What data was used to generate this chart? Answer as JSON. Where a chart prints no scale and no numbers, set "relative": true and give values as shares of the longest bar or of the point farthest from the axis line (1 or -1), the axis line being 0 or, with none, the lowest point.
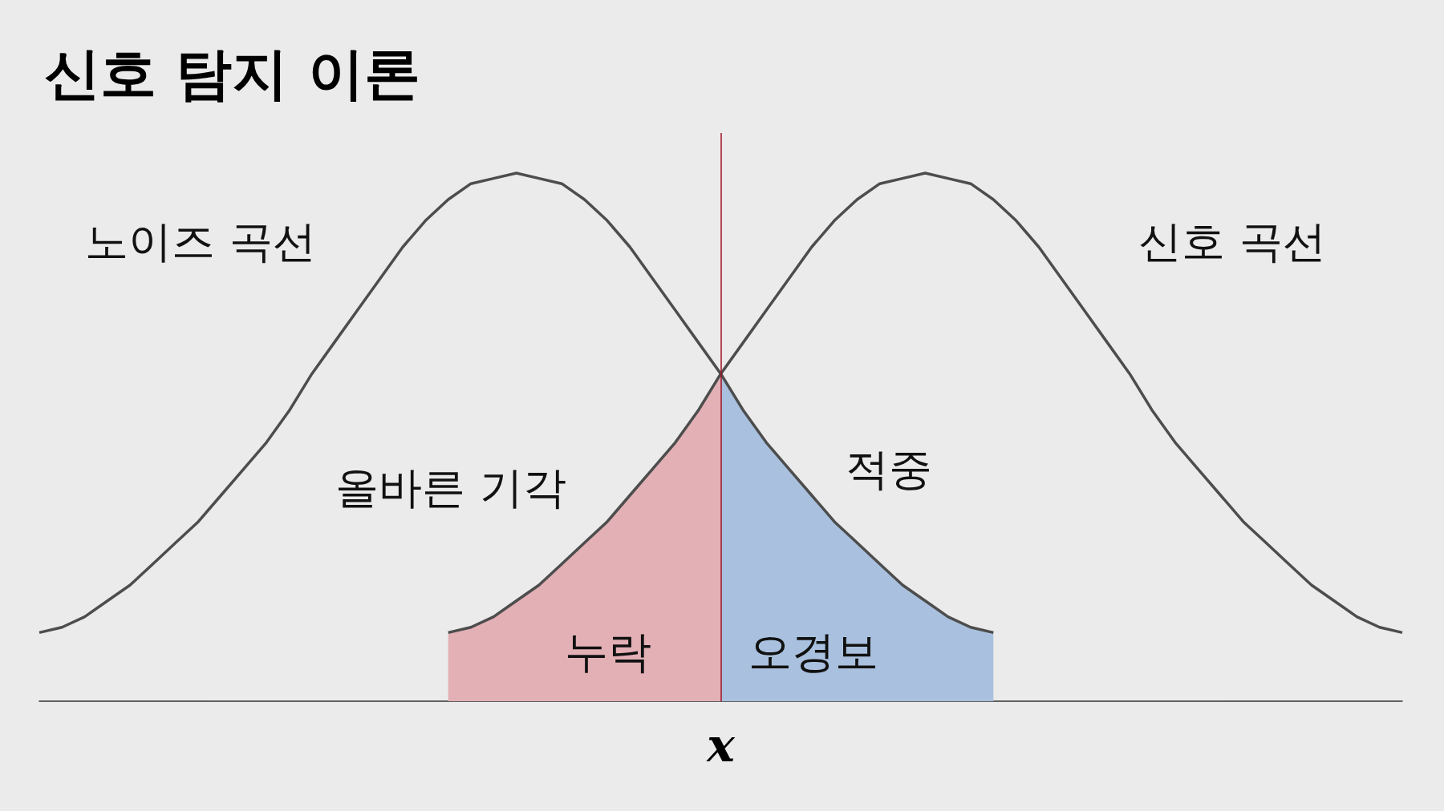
{
  "chart_data": {
    "type": "line",
    "title": "신호 탐지 이론",
    "relative": true,
    "marker": "none",
    "grid": false,
    "legend": false,
    "categories": [
      null,
      null,
      null,
      null,
      null,
      null,
      null,
      null,
      null,
      null,
      null,
      null,
      null,
      null,
      null,
      null,
      null,
      null,
      null,
      null,
      null,
      null,
      null,
      null,
      null,
      null,
      null,
      null,
      null,
      null,
      null,
      null,
      null,
      null,
      null,
      null,
      null,
      null,
      null,
      null,
      null,
      null,
      null,
      null,
      null,
      null,
      null,
      null,
      null,
      null,
      null,
      null,
      null,
      null,
      null,
      null,
      null,
      null,
      null,
      null,
      null
    ],
    "series": [
      {
        "name": "누락",
        "type": "area",
        "color": "#e2b0b5",
        "values": [
          null,
          null,
          null,
          null,
          null,
          null,
          null,
          null,
          null,
          null,
          null,
          null,
          null,
          null,
          null,
          null,
          null,
          null,
          0.13,
          0.14,
          0.16,
          0.19,
          0.22,
          0.26,
          0.3,
          0.34,
          0.39,
          0.44,
          0.49,
          0.55,
          0.62,
          null,
          null,
          null,
          null,
          null,
          null,
          null,
          null,
          null,
          null,
          null,
          null,
          null,
          null,
          null,
          null,
          null,
          null,
          null,
          null,
          null,
          null,
          null,
          null,
          null,
          null,
          null,
          null,
          null,
          null
        ]
      },
      {
        "name": "오경보",
        "type": "area",
        "color": "#a9c1de",
        "values": [
          null,
          null,
          null,
          null,
          null,
          null,
          null,
          null,
          null,
          null,
          null,
          null,
          null,
          null,
          null,
          null,
          null,
          null,
          null,
          null,
          null,
          null,
          null,
          null,
          null,
          null,
          null,
          null,
          null,
          null,
          0.62,
          0.55,
          0.49,
          0.44,
          0.39,
          0.34,
          0.3,
          0.26,
          0.22,
          0.19,
          0.16,
          0.14,
          0.13,
          null,
          null,
          null,
          null,
          null,
          null,
          null,
          null,
          null,
          null,
          null,
          null,
          null,
          null,
          null,
          null,
          null,
          null
        ]
      },
      {
        "name": "노이즈 곡선",
        "type": "line",
        "color": "#4d4d4d",
        "values": [
          0.13,
          0.14,
          0.16,
          0.19,
          0.22,
          0.26,
          0.3,
          0.34,
          0.39,
          0.44,
          0.49,
          0.55,
          0.62,
          0.68,
          0.74,
          0.8,
          0.86,
          0.91,
          0.95,
          0.98,
          0.99,
          1,
          0.99,
          0.98,
          0.95,
          0.91,
          0.86,
          0.8,
          0.74,
          0.68,
          0.62,
          0.55,
          0.49,
          0.44,
          0.39,
          0.34,
          0.3,
          0.26,
          0.22,
          0.19,
          0.16,
          0.14,
          0.13,
          null,
          null,
          null,
          null,
          null,
          null,
          null,
          null,
          null,
          null,
          null,
          null,
          null,
          null,
          null,
          null,
          null,
          null
        ]
      },
      {
        "name": "신호 곡선",
        "type": "line",
        "color": "#4d4d4d",
        "values": [
          null,
          null,
          null,
          null,
          null,
          null,
          null,
          null,
          null,
          null,
          null,
          null,
          null,
          null,
          null,
          null,
          null,
          null,
          0.13,
          0.14,
          0.16,
          0.19,
          0.22,
          0.26,
          0.3,
          0.34,
          0.39,
          0.44,
          0.49,
          0.55,
          0.62,
          0.68,
          0.74,
          0.8,
          0.86,
          0.91,
          0.95,
          0.98,
          0.99,
          1,
          0.99,
          0.98,
          0.95,
          0.91,
          0.86,
          0.8,
          0.74,
          0.68,
          0.62,
          0.55,
          0.49,
          0.44,
          0.39,
          0.34,
          0.3,
          0.26,
          0.22,
          0.19,
          0.16,
          0.14,
          0.13
        ]
      }
    ],
    "ref_lines": [
      {
        "axis": "x",
        "label": "x",
        "color": "#a01020"
      }
    ],
    "annotations": [
      "올바른 기각",
      "적중"
    ]
  }
}
